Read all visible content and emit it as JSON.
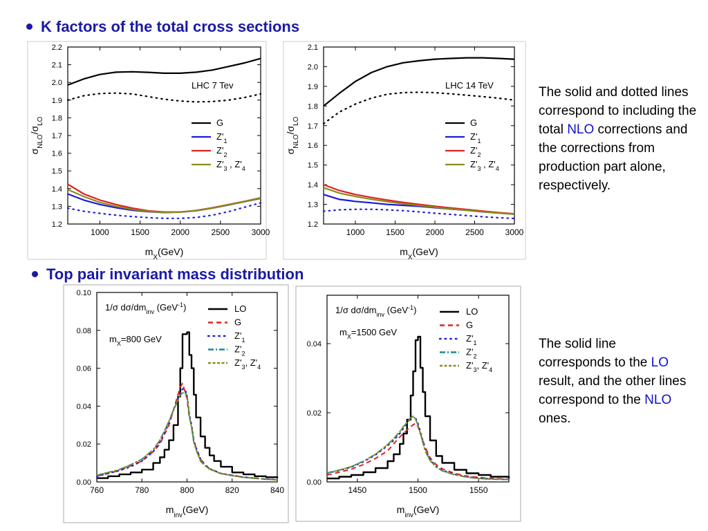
{
  "sections": {
    "kfactor": {
      "heading": "K factors of the total cross sections"
    },
    "toppair": {
      "heading": "Top pair invariant mass distribution"
    }
  },
  "notes": {
    "kfactor": [
      {
        "text": "The solid and dotted lines correspond to including the total ",
        "hl": false
      },
      {
        "text": "NLO",
        "hl": true
      },
      {
        "text": " corrections and the corrections from production part alone, respectively.",
        "hl": false
      }
    ],
    "toppair": [
      {
        "text": "The solid line corresponds to the ",
        "hl": false
      },
      {
        "text": "LO",
        "hl": true
      },
      {
        "text": " result, and the other lines correspond to the ",
        "hl": false
      },
      {
        "text": "NLO",
        "hl": true
      },
      {
        "text": " ones.",
        "hl": false
      }
    ]
  },
  "colors": {
    "heading": "#1a1aa6",
    "highlight": "#1010d0",
    "G": "#000000",
    "Z1": "#1a1adc",
    "Z2": "#e02020",
    "Z34": "#8b8b1a",
    "LO": "#000000",
    "Gdist": "#e02020",
    "Z1dist": "#1a1adc",
    "Z2dist": "#1a8a8a",
    "Z34dist": "#8b8b1a"
  },
  "chart_data": [
    {
      "type": "line",
      "annotation": "LHC  7 Tev",
      "xlabel": "m_X(GeV)",
      "ylabel": "σ_NLO/σ_LO",
      "xlim": [
        600,
        3000
      ],
      "ylim": [
        1.2,
        2.2
      ],
      "xticks": [
        1000,
        1500,
        2000,
        2500,
        3000
      ],
      "yticks": [
        1.2,
        1.3,
        1.4,
        1.5,
        1.6,
        1.7,
        1.8,
        1.9,
        2.0,
        2.1,
        2.2
      ],
      "legend_position": "right",
      "legend": [
        "G",
        "Z'1",
        "Z'2",
        "Z'3 , Z'4"
      ],
      "x": [
        600,
        800,
        1000,
        1200,
        1400,
        1600,
        1800,
        2000,
        2200,
        2400,
        2600,
        2800,
        3000
      ],
      "series": [
        {
          "name": "G",
          "style": "solid",
          "values": [
            1.985,
            2.02,
            2.045,
            2.058,
            2.06,
            2.057,
            2.052,
            2.052,
            2.058,
            2.07,
            2.09,
            2.11,
            2.135
          ]
        },
        {
          "name": "G",
          "style": "dotted",
          "values": [
            1.9,
            1.925,
            1.937,
            1.94,
            1.935,
            1.92,
            1.905,
            1.895,
            1.89,
            1.892,
            1.9,
            1.915,
            1.935
          ]
        },
        {
          "name": "Z'1",
          "style": "solid",
          "values": [
            1.37,
            1.335,
            1.31,
            1.292,
            1.278,
            1.27,
            1.265,
            1.267,
            1.275,
            1.29,
            1.308,
            1.326,
            1.345
          ]
        },
        {
          "name": "Z'1",
          "style": "dotted",
          "values": [
            1.29,
            1.272,
            1.26,
            1.25,
            1.242,
            1.236,
            1.232,
            1.232,
            1.237,
            1.25,
            1.27,
            1.295,
            1.32
          ]
        },
        {
          "name": "Z'2",
          "style": "solid",
          "values": [
            1.425,
            1.37,
            1.335,
            1.31,
            1.29,
            1.275,
            1.268,
            1.268,
            1.277,
            1.292,
            1.31,
            1.328,
            1.348
          ]
        },
        {
          "name": "Z'3 , Z'4",
          "style": "solid",
          "values": [
            1.395,
            1.355,
            1.322,
            1.3,
            1.283,
            1.272,
            1.266,
            1.267,
            1.276,
            1.29,
            1.309,
            1.327,
            1.347
          ]
        }
      ]
    },
    {
      "type": "line",
      "annotation": "LHC  14 TeV",
      "xlabel": "m_X(GeV)",
      "ylabel": "σ_NLO/σ_LO",
      "xlim": [
        600,
        3000
      ],
      "ylim": [
        1.2,
        2.1
      ],
      "xticks": [
        1000,
        1500,
        2000,
        2500,
        3000
      ],
      "yticks": [
        1.2,
        1.3,
        1.4,
        1.5,
        1.6,
        1.7,
        1.8,
        1.9,
        2.0,
        2.1
      ],
      "legend_position": "right",
      "legend": [
        "G",
        "Z'1",
        "Z'2",
        "Z'3 , Z'4"
      ],
      "x": [
        600,
        800,
        1000,
        1200,
        1400,
        1600,
        1800,
        2000,
        2200,
        2400,
        2600,
        2800,
        3000
      ],
      "series": [
        {
          "name": "G",
          "style": "solid",
          "values": [
            1.8,
            1.865,
            1.925,
            1.97,
            2.0,
            2.02,
            2.03,
            2.038,
            2.042,
            2.045,
            2.045,
            2.042,
            2.038
          ]
        },
        {
          "name": "G",
          "style": "dotted",
          "values": [
            1.71,
            1.77,
            1.81,
            1.84,
            1.86,
            1.868,
            1.87,
            1.868,
            1.862,
            1.855,
            1.848,
            1.84,
            1.83
          ]
        },
        {
          "name": "Z'1",
          "style": "solid",
          "values": [
            1.35,
            1.325,
            1.315,
            1.308,
            1.3,
            1.295,
            1.29,
            1.283,
            1.276,
            1.27,
            1.262,
            1.256,
            1.25
          ]
        },
        {
          "name": "Z'1",
          "style": "dotted",
          "values": [
            1.265,
            1.272,
            1.275,
            1.275,
            1.272,
            1.268,
            1.262,
            1.255,
            1.249,
            1.243,
            1.237,
            1.232,
            1.228
          ]
        },
        {
          "name": "Z'2",
          "style": "solid",
          "values": [
            1.4,
            1.37,
            1.35,
            1.335,
            1.322,
            1.31,
            1.3,
            1.29,
            1.282,
            1.274,
            1.266,
            1.258,
            1.252
          ]
        },
        {
          "name": "Z'3 , Z'4",
          "style": "solid",
          "values": [
            1.385,
            1.357,
            1.34,
            1.326,
            1.314,
            1.303,
            1.294,
            1.285,
            1.277,
            1.27,
            1.263,
            1.256,
            1.25
          ]
        }
      ]
    },
    {
      "type": "line",
      "annotation_title": "1/σ dσ/dm_inv (GeV^-1)",
      "annotation_mass": "m_X=800 GeV",
      "xlabel": "m_inv(GeV)",
      "ylabel": "",
      "xlim": [
        760,
        840
      ],
      "ylim": [
        0,
        0.1
      ],
      "xticks": [
        760,
        780,
        800,
        820,
        840
      ],
      "yticks": [
        0.0,
        0.02,
        0.04,
        0.06,
        0.08,
        0.1
      ],
      "ytick_labels": [
        "0.00",
        "0.02",
        "0.04",
        "0.06",
        "0.08",
        "0.10"
      ],
      "legend_position": "top-right",
      "legend": [
        "LO",
        "G",
        "Z'1",
        "Z'2",
        "Z'3 , Z'4"
      ],
      "x": [
        760,
        765,
        770,
        775,
        780,
        785,
        788,
        790,
        792,
        794,
        796,
        797,
        798,
        799,
        800,
        801,
        802,
        803,
        804,
        806,
        808,
        810,
        812,
        815,
        820,
        825,
        830,
        835,
        840
      ],
      "series": [
        {
          "name": "LO",
          "style": "solid-step",
          "values": [
            0.002,
            0.003,
            0.004,
            0.005,
            0.0065,
            0.01,
            0.013,
            0.017,
            0.022,
            0.03,
            0.045,
            0.06,
            0.078,
            0.078,
            0.079,
            0.067,
            0.06,
            0.046,
            0.034,
            0.024,
            0.018,
            0.014,
            0.011,
            0.008,
            0.005,
            0.004,
            0.003,
            0.0025,
            0.002
          ]
        },
        {
          "name": "G",
          "style": "dashed",
          "values": [
            0.003,
            0.0045,
            0.006,
            0.0085,
            0.011,
            0.016,
            0.02,
            0.025,
            0.03,
            0.038,
            0.046,
            0.05,
            0.052,
            0.048,
            0.044,
            0.034,
            0.03,
            0.022,
            0.018,
            0.012,
            0.009,
            0.007,
            0.006,
            0.0045,
            0.0035,
            0.0025,
            0.002,
            0.0015,
            0.0012
          ]
        },
        {
          "name": "Z'1",
          "style": "dotted",
          "values": [
            0.003,
            0.0045,
            0.006,
            0.008,
            0.011,
            0.016,
            0.021,
            0.026,
            0.031,
            0.038,
            0.044,
            0.047,
            0.049,
            0.049,
            0.046,
            0.036,
            0.03,
            0.022,
            0.018,
            0.012,
            0.009,
            0.007,
            0.006,
            0.0045,
            0.0035,
            0.0025,
            0.002,
            0.0015,
            0.0012
          ]
        },
        {
          "name": "Z'2",
          "style": "dashdot",
          "values": [
            0.0035,
            0.005,
            0.0065,
            0.009,
            0.012,
            0.017,
            0.022,
            0.027,
            0.032,
            0.038,
            0.043,
            0.046,
            0.047,
            0.047,
            0.046,
            0.035,
            0.029,
            0.021,
            0.017,
            0.011,
            0.0085,
            0.0068,
            0.0058,
            0.0044,
            0.0033,
            0.0024,
            0.0019,
            0.0014,
            0.0011
          ]
        },
        {
          "name": "Z'3 , Z'4",
          "style": "short-dash",
          "values": [
            0.0035,
            0.005,
            0.0065,
            0.009,
            0.012,
            0.017,
            0.022,
            0.027,
            0.032,
            0.038,
            0.043,
            0.046,
            0.047,
            0.047,
            0.046,
            0.035,
            0.029,
            0.021,
            0.017,
            0.011,
            0.0085,
            0.0068,
            0.0058,
            0.0044,
            0.0033,
            0.0024,
            0.0019,
            0.0014,
            0.0011
          ]
        }
      ]
    },
    {
      "type": "line",
      "annotation_title": "1/σ dσ/dm_inv (GeV^-1)",
      "annotation_mass": "m_X=1500 GeV",
      "xlabel": "m_inv(GeV)",
      "ylabel": "",
      "xlim": [
        1425,
        1575
      ],
      "ylim": [
        0,
        0.054
      ],
      "xticks": [
        1450,
        1500,
        1550
      ],
      "yticks": [
        0.0,
        0.02,
        0.04
      ],
      "ytick_labels": [
        "0.00",
        "0.02",
        "0.04"
      ],
      "legend_position": "top-right",
      "legend": [
        "LO",
        "G",
        "Z'1",
        "Z'2",
        "Z'3 , Z'4"
      ],
      "x": [
        1425,
        1435,
        1445,
        1455,
        1465,
        1475,
        1480,
        1485,
        1488,
        1491,
        1494,
        1496,
        1498,
        1500,
        1502,
        1504,
        1506,
        1510,
        1515,
        1520,
        1530,
        1540,
        1550,
        1560,
        1575
      ],
      "series": [
        {
          "name": "LO",
          "style": "solid-step",
          "values": [
            0.001,
            0.0015,
            0.002,
            0.0028,
            0.004,
            0.006,
            0.008,
            0.011,
            0.014,
            0.018,
            0.025,
            0.032,
            0.041,
            0.042,
            0.033,
            0.026,
            0.019,
            0.012,
            0.0075,
            0.0055,
            0.0035,
            0.0025,
            0.002,
            0.0015,
            0.001
          ]
        },
        {
          "name": "G",
          "style": "dashed",
          "values": [
            0.002,
            0.0028,
            0.0037,
            0.005,
            0.0068,
            0.009,
            0.011,
            0.013,
            0.014,
            0.015,
            0.016,
            0.0165,
            0.017,
            0.016,
            0.014,
            0.012,
            0.01,
            0.007,
            0.005,
            0.0038,
            0.0025,
            0.0017,
            0.0013,
            0.001,
            0.0008
          ]
        },
        {
          "name": "Z'1",
          "style": "dotted",
          "values": [
            0.0025,
            0.0033,
            0.0043,
            0.0058,
            0.0078,
            0.0105,
            0.012,
            0.014,
            0.0155,
            0.017,
            0.0185,
            0.019,
            0.0185,
            0.017,
            0.0145,
            0.012,
            0.0095,
            0.0065,
            0.0045,
            0.0034,
            0.0022,
            0.0015,
            0.0011,
            0.0009,
            0.0007
          ]
        },
        {
          "name": "Z'2",
          "style": "dashdot",
          "values": [
            0.0026,
            0.0034,
            0.0044,
            0.006,
            0.008,
            0.0108,
            0.0125,
            0.0145,
            0.016,
            0.0172,
            0.0185,
            0.019,
            0.0182,
            0.0165,
            0.014,
            0.0115,
            0.009,
            0.0062,
            0.0043,
            0.0032,
            0.0021,
            0.0014,
            0.001,
            0.0008,
            0.0007
          ]
        },
        {
          "name": "Z'3 , Z'4",
          "style": "short-dash",
          "values": [
            0.0026,
            0.0034,
            0.0044,
            0.006,
            0.008,
            0.0108,
            0.0125,
            0.0145,
            0.016,
            0.0172,
            0.0185,
            0.019,
            0.0182,
            0.0165,
            0.014,
            0.0115,
            0.009,
            0.0062,
            0.0043,
            0.0032,
            0.0021,
            0.0014,
            0.001,
            0.0008,
            0.0007
          ]
        }
      ]
    }
  ]
}
